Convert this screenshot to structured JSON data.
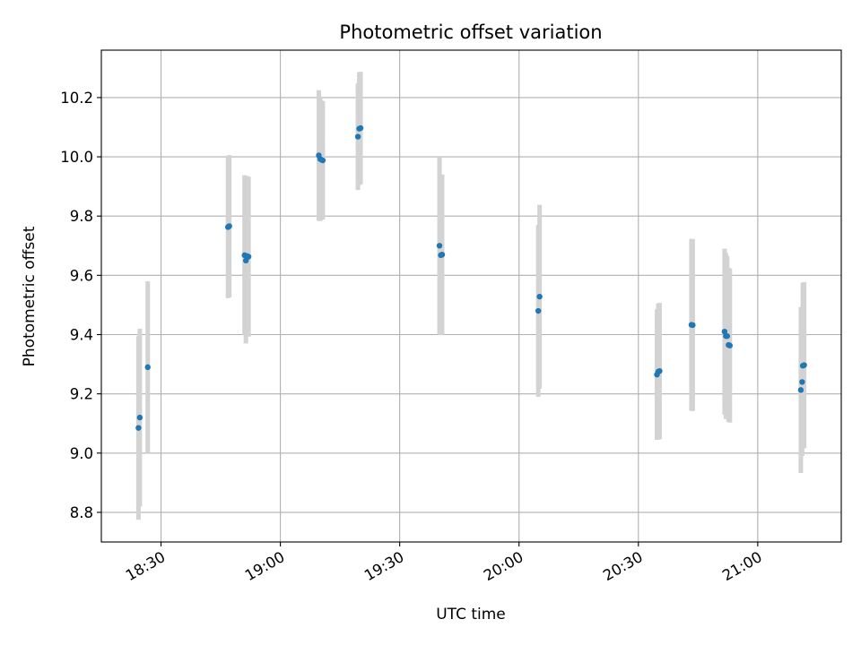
{
  "chart_data": {
    "type": "scatter",
    "title": "Photometric offset variation",
    "xlabel": "UTC time",
    "ylabel": "Photometric offset",
    "x_axis_kind": "time",
    "xlim": [
      "18:15",
      "21:21"
    ],
    "ylim": [
      8.7,
      10.36
    ],
    "x_ticks": [
      "18:30",
      "19:00",
      "19:30",
      "20:00",
      "20:30",
      "21:00"
    ],
    "y_ticks": [
      "8.8",
      "9.0",
      "9.2",
      "9.4",
      "9.6",
      "9.8",
      "10.0",
      "10.2"
    ],
    "grid": true,
    "colors": {
      "point": "#1f77b4",
      "errorbar": "#d3d3d3"
    },
    "points": [
      {
        "x": "18:24:20",
        "y": 9.085,
        "yerr": 0.31
      },
      {
        "x": "18:24:40",
        "y": 9.12,
        "yerr": 0.3
      },
      {
        "x": "18:26:40",
        "y": 9.29,
        "yerr": 0.29
      },
      {
        "x": "18:46:50",
        "y": 9.763,
        "yerr": 0.24
      },
      {
        "x": "18:47:10",
        "y": 9.766,
        "yerr": 0.24
      },
      {
        "x": "18:51:00",
        "y": 9.668,
        "yerr": 0.27
      },
      {
        "x": "18:51:20",
        "y": 9.65,
        "yerr": 0.28
      },
      {
        "x": "18:51:40",
        "y": 9.665,
        "yerr": 0.27
      },
      {
        "x": "18:52:00",
        "y": 9.663,
        "yerr": 0.27
      },
      {
        "x": "19:09:40",
        "y": 10.005,
        "yerr": 0.22
      },
      {
        "x": "19:10:00",
        "y": 9.993,
        "yerr": 0.21
      },
      {
        "x": "19:10:20",
        "y": 9.99,
        "yerr": 0.2
      },
      {
        "x": "19:10:40",
        "y": 9.988,
        "yerr": 0.2
      },
      {
        "x": "19:19:30",
        "y": 10.068,
        "yerr": 0.18
      },
      {
        "x": "19:19:50",
        "y": 10.095,
        "yerr": 0.19
      },
      {
        "x": "19:20:10",
        "y": 10.097,
        "yerr": 0.19
      },
      {
        "x": "19:40:00",
        "y": 9.7,
        "yerr": 0.3
      },
      {
        "x": "19:40:20",
        "y": 9.668,
        "yerr": 0.27
      },
      {
        "x": "19:40:40",
        "y": 9.67,
        "yerr": 0.27
      },
      {
        "x": "20:04:50",
        "y": 9.48,
        "yerr": 0.29
      },
      {
        "x": "20:05:10",
        "y": 9.528,
        "yerr": 0.31
      },
      {
        "x": "20:34:40",
        "y": 9.265,
        "yerr": 0.22
      },
      {
        "x": "20:35:00",
        "y": 9.275,
        "yerr": 0.23
      },
      {
        "x": "20:35:20",
        "y": 9.277,
        "yerr": 0.23
      },
      {
        "x": "20:43:20",
        "y": 9.433,
        "yerr": 0.29
      },
      {
        "x": "20:43:40",
        "y": 9.432,
        "yerr": 0.29
      },
      {
        "x": "20:51:40",
        "y": 9.41,
        "yerr": 0.28
      },
      {
        "x": "20:52:00",
        "y": 9.395,
        "yerr": 0.28
      },
      {
        "x": "20:52:20",
        "y": 9.395,
        "yerr": 0.27
      },
      {
        "x": "20:52:40",
        "y": 9.365,
        "yerr": 0.26
      },
      {
        "x": "20:53:00",
        "y": 9.363,
        "yerr": 0.26
      },
      {
        "x": "21:10:50",
        "y": 9.213,
        "yerr": 0.28
      },
      {
        "x": "21:11:10",
        "y": 9.24,
        "yerr": 0.25
      },
      {
        "x": "21:11:20",
        "y": 9.295,
        "yerr": 0.28
      },
      {
        "x": "21:11:40",
        "y": 9.297,
        "yerr": 0.28
      }
    ]
  }
}
